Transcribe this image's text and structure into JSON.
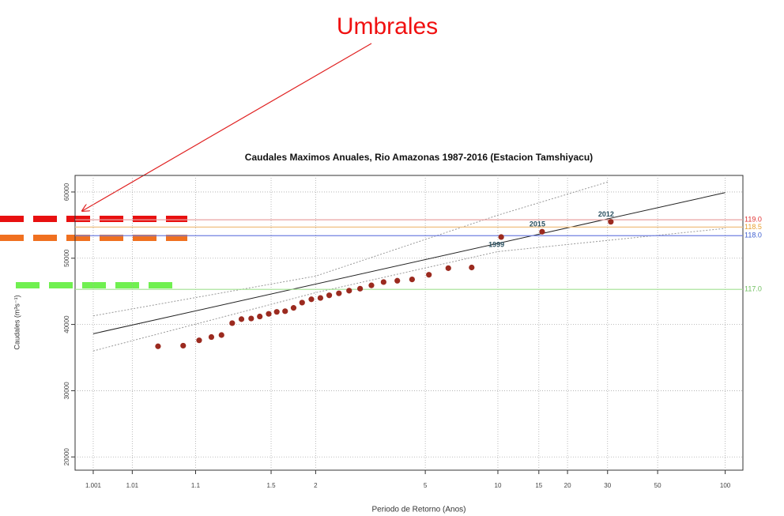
{
  "chart_data": {
    "type": "scatter",
    "annotation": "Umbrales",
    "title": "Caudales Maximos Anuales, Rio Amazonas 1987-2016 (Estacion Tamshiyacu)",
    "x_label": "Periodo de Retorno (Anos)",
    "y_label": "Caudales (m³s⁻¹)",
    "xscale": "gumbel",
    "xlim": [
      1.00024,
      120
    ],
    "xticks": [
      1.001,
      1.01,
      1.1,
      1.5,
      2,
      5,
      10,
      15,
      20,
      30,
      50,
      100
    ],
    "ylim": [
      18000,
      62500
    ],
    "yticks": [
      20000,
      30000,
      40000,
      50000,
      60000
    ],
    "grid": true,
    "color": "#9b2a1f",
    "x": [
      1.03,
      1.07,
      1.11,
      1.15,
      1.19,
      1.24,
      1.29,
      1.35,
      1.41,
      1.48,
      1.55,
      1.63,
      1.72,
      1.82,
      1.94,
      2.07,
      2.21,
      2.38,
      2.58,
      2.82,
      3.1,
      3.44,
      3.88,
      4.43,
      5.17,
      6.2,
      7.75,
      10.33,
      15.5,
      31
    ],
    "values": [
      36700,
      36800,
      37600,
      38100,
      38400,
      40200,
      40800,
      40900,
      41200,
      41600,
      41900,
      42000,
      42500,
      43300,
      43800,
      44000,
      44400,
      44700,
      45100,
      45400,
      45900,
      46400,
      46600,
      46800,
      47500,
      48500,
      48600,
      53200,
      54000,
      55500
    ],
    "point_labels": [
      null,
      null,
      null,
      null,
      null,
      null,
      null,
      null,
      null,
      null,
      null,
      null,
      null,
      null,
      null,
      null,
      null,
      null,
      null,
      null,
      null,
      null,
      null,
      null,
      null,
      null,
      null,
      "1999",
      "2015",
      "2012"
    ],
    "fit_line": {
      "color": "#222222",
      "x": [
        1.001,
        100
      ],
      "values": [
        38600,
        59900
      ]
    },
    "confidence_upper": {
      "color": "#999999",
      "x": [
        1.001,
        2,
        10,
        30
      ],
      "values": [
        41300,
        47300,
        56500,
        61500
      ]
    },
    "confidence_lower": {
      "color": "#999999",
      "x": [
        1.001,
        2,
        10,
        100
      ],
      "values": [
        36000,
        44800,
        51000,
        54500
      ]
    },
    "thresholds": [
      {
        "name": "119.0",
        "value": 55800,
        "color": "#e8a0a0",
        "label_color": "#e03030"
      },
      {
        "name": "118.5",
        "value": 54700,
        "color": "#f0c080",
        "label_color": "#e8a030"
      },
      {
        "name": "118.0",
        "value": 53400,
        "color": "#7080e0",
        "label_color": "#4060d0"
      },
      {
        "name": "117.0",
        "value": 45300,
        "color": "#a0e090",
        "label_color": "#70c060"
      }
    ]
  }
}
